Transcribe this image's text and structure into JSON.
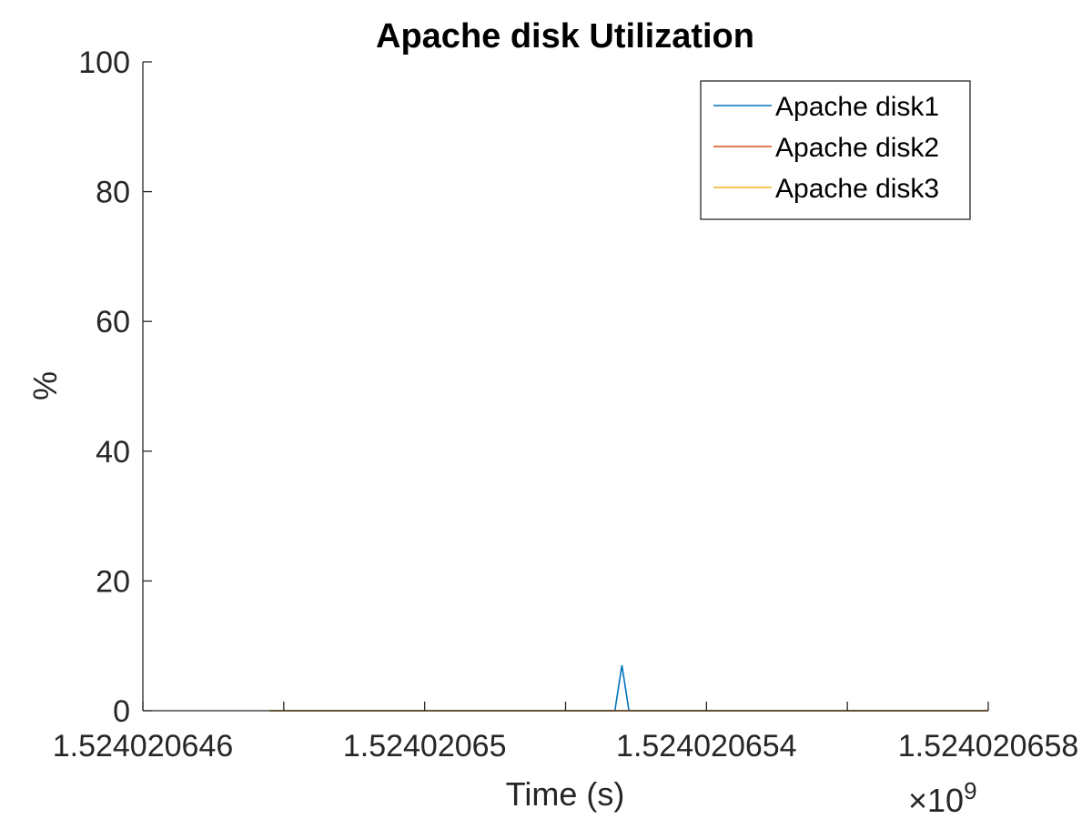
{
  "chart_data": {
    "type": "line",
    "title": "Apache disk Utilization",
    "xlabel": "Time (s)",
    "ylabel": "%",
    "x_exponent_label": "×10",
    "x_exponent_power": "9",
    "xlim": [
      1.524020646,
      1.524020658
    ],
    "ylim": [
      0,
      100
    ],
    "x_ticks": [
      1.524020646,
      1.52402065,
      1.524020654,
      1.524020658
    ],
    "x_tick_labels": [
      "1.524020646",
      "1.52402065",
      "1.524020654",
      "1.524020658"
    ],
    "x_minor_ticks": [
      1.524020648,
      1.524020652,
      1.524020656
    ],
    "y_ticks": [
      0,
      20,
      40,
      60,
      80,
      100
    ],
    "y_tick_labels": [
      "0",
      "20",
      "40",
      "60",
      "80",
      "100"
    ],
    "grid": false,
    "legend_position": "top-right",
    "series": [
      {
        "name": "Apache disk1",
        "color": "#0072BD",
        "x": [
          1.5240206478,
          1.5240206527,
          1.5240206528,
          1.5240206529,
          1.524020658
        ],
        "y": [
          0,
          0,
          7,
          0,
          0
        ]
      },
      {
        "name": "Apache disk2",
        "color": "#D95319",
        "x": [
          1.5240206478,
          1.524020658
        ],
        "y": [
          0,
          0
        ]
      },
      {
        "name": "Apache disk3",
        "color": "#EDB120",
        "x": [
          1.5240206478,
          1.524020658
        ],
        "y": [
          0,
          0
        ]
      }
    ]
  }
}
